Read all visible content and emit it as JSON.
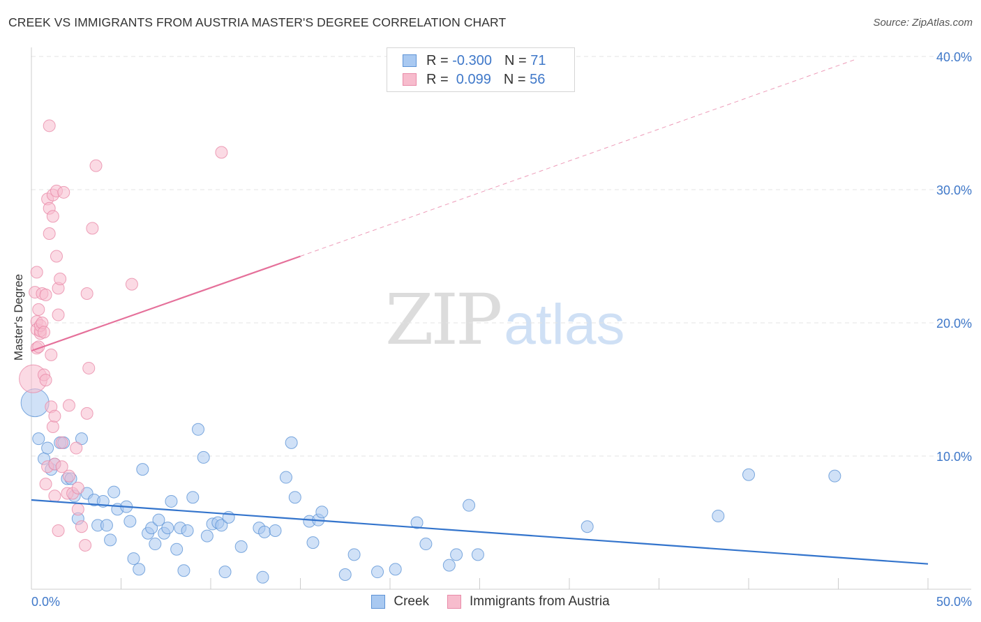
{
  "title": "CREEK VS IMMIGRANTS FROM AUSTRIA MASTER'S DEGREE CORRELATION CHART",
  "source": "Source: ZipAtlas.com",
  "watermark": {
    "zip": "ZIP",
    "atlas": "atlas"
  },
  "legend": {
    "creek": {
      "r_label": "R = ",
      "r_value": "-0.300",
      "n_label": "N = ",
      "n_value": "71"
    },
    "austria": {
      "r_label": "R = ",
      "r_value": " 0.099",
      "n_label": "N = ",
      "n_value": "56"
    }
  },
  "bottom_legend": {
    "creek": "Creek",
    "austria": "Immigrants from Austria"
  },
  "colors": {
    "creek_fill": "#a9c9f1",
    "creek_stroke": "#5d93d6",
    "creek_line": "#3374cc",
    "austria_fill": "#f7bccd",
    "austria_stroke": "#e98aa8",
    "austria_line": "#e5709a",
    "tick": "#3f78c9",
    "grid": "#e3e3e3"
  },
  "chart_data": {
    "type": "scatter",
    "title": "CREEK VS IMMIGRANTS FROM AUSTRIA MASTER'S DEGREE CORRELATION CHART",
    "xlabel": "",
    "ylabel": "Master's Degree",
    "xlim": [
      0,
      50
    ],
    "ylim": [
      0,
      40
    ],
    "x_ticks": [
      "0.0%",
      "50.0%"
    ],
    "y_ticks": [
      {
        "value": 10,
        "label": "10.0%"
      },
      {
        "value": 20,
        "label": "20.0%"
      },
      {
        "value": 30,
        "label": "30.0%"
      },
      {
        "value": 40,
        "label": "40.0%"
      }
    ],
    "series": [
      {
        "name": "Creek",
        "r": -0.3,
        "n": 71,
        "trend": {
          "x0": 0,
          "y0": 6.7,
          "x1": 50,
          "y1": 1.9,
          "dashed_from": null
        },
        "points": [
          {
            "x": 0.2,
            "y": 14.0,
            "big": true
          },
          {
            "x": 0.4,
            "y": 11.3
          },
          {
            "x": 0.7,
            "y": 9.8
          },
          {
            "x": 0.9,
            "y": 10.6
          },
          {
            "x": 1.1,
            "y": 9.0
          },
          {
            "x": 1.3,
            "y": 9.4
          },
          {
            "x": 1.6,
            "y": 11.0
          },
          {
            "x": 1.8,
            "y": 11.0
          },
          {
            "x": 2.0,
            "y": 8.3
          },
          {
            "x": 2.2,
            "y": 8.3
          },
          {
            "x": 2.4,
            "y": 7.0
          },
          {
            "x": 2.6,
            "y": 5.3
          },
          {
            "x": 2.8,
            "y": 11.3
          },
          {
            "x": 3.1,
            "y": 7.2
          },
          {
            "x": 3.5,
            "y": 6.7
          },
          {
            "x": 3.7,
            "y": 4.8
          },
          {
            "x": 4.0,
            "y": 6.6
          },
          {
            "x": 4.2,
            "y": 4.8
          },
          {
            "x": 4.4,
            "y": 3.7
          },
          {
            "x": 4.6,
            "y": 7.3
          },
          {
            "x": 4.8,
            "y": 6.0
          },
          {
            "x": 5.3,
            "y": 6.2
          },
          {
            "x": 5.5,
            "y": 5.1
          },
          {
            "x": 5.7,
            "y": 2.3
          },
          {
            "x": 6.0,
            "y": 1.5
          },
          {
            "x": 6.2,
            "y": 9.0
          },
          {
            "x": 6.5,
            "y": 4.2
          },
          {
            "x": 6.7,
            "y": 4.6
          },
          {
            "x": 6.9,
            "y": 3.4
          },
          {
            "x": 7.1,
            "y": 5.2
          },
          {
            "x": 7.4,
            "y": 4.2
          },
          {
            "x": 7.6,
            "y": 4.6
          },
          {
            "x": 7.8,
            "y": 6.6
          },
          {
            "x": 8.1,
            "y": 3.0
          },
          {
            "x": 8.3,
            "y": 4.6
          },
          {
            "x": 8.5,
            "y": 1.4
          },
          {
            "x": 8.7,
            "y": 4.4
          },
          {
            "x": 9.0,
            "y": 6.9
          },
          {
            "x": 9.3,
            "y": 12.0
          },
          {
            "x": 9.6,
            "y": 9.9
          },
          {
            "x": 9.8,
            "y": 4.0
          },
          {
            "x": 10.1,
            "y": 4.9
          },
          {
            "x": 10.4,
            "y": 5.0
          },
          {
            "x": 10.6,
            "y": 4.8
          },
          {
            "x": 10.8,
            "y": 1.3
          },
          {
            "x": 11.0,
            "y": 5.4
          },
          {
            "x": 11.7,
            "y": 3.2
          },
          {
            "x": 12.7,
            "y": 4.6
          },
          {
            "x": 12.9,
            "y": 0.9
          },
          {
            "x": 13.0,
            "y": 4.3
          },
          {
            "x": 13.6,
            "y": 4.4
          },
          {
            "x": 14.2,
            "y": 8.4
          },
          {
            "x": 14.5,
            "y": 11.0
          },
          {
            "x": 14.7,
            "y": 6.9
          },
          {
            "x": 15.5,
            "y": 5.1
          },
          {
            "x": 15.7,
            "y": 3.5
          },
          {
            "x": 16.0,
            "y": 5.2
          },
          {
            "x": 16.2,
            "y": 5.8
          },
          {
            "x": 17.5,
            "y": 1.1
          },
          {
            "x": 18.0,
            "y": 2.6
          },
          {
            "x": 19.3,
            "y": 1.3
          },
          {
            "x": 20.3,
            "y": 1.5
          },
          {
            "x": 21.5,
            "y": 5.0
          },
          {
            "x": 22.0,
            "y": 3.4
          },
          {
            "x": 23.3,
            "y": 1.8
          },
          {
            "x": 23.7,
            "y": 2.6
          },
          {
            "x": 24.9,
            "y": 2.6
          },
          {
            "x": 24.4,
            "y": 6.3
          },
          {
            "x": 31.0,
            "y": 4.7
          },
          {
            "x": 38.3,
            "y": 5.5
          },
          {
            "x": 40.0,
            "y": 8.6
          },
          {
            "x": 44.8,
            "y": 8.5
          }
        ]
      },
      {
        "name": "Immigrants from Austria",
        "r": 0.099,
        "n": 56,
        "trend": {
          "x0": 0,
          "y0": 17.9,
          "x1": 15.0,
          "y1": 25.0,
          "dashed_from": 15.0,
          "dashed_to_x": 46.0,
          "dashed_to_y": 39.8
        },
        "points": [
          {
            "x": 0.1,
            "y": 15.8,
            "big": true
          },
          {
            "x": 0.2,
            "y": 22.3
          },
          {
            "x": 0.3,
            "y": 20.1
          },
          {
            "x": 0.3,
            "y": 19.5
          },
          {
            "x": 0.3,
            "y": 18.1
          },
          {
            "x": 0.3,
            "y": 23.8
          },
          {
            "x": 0.4,
            "y": 21.0
          },
          {
            "x": 0.4,
            "y": 18.2
          },
          {
            "x": 0.5,
            "y": 19.2
          },
          {
            "x": 0.5,
            "y": 19.4
          },
          {
            "x": 0.5,
            "y": 19.8
          },
          {
            "x": 0.6,
            "y": 20.0
          },
          {
            "x": 0.6,
            "y": 22.2
          },
          {
            "x": 0.7,
            "y": 19.3
          },
          {
            "x": 0.7,
            "y": 16.1
          },
          {
            "x": 0.8,
            "y": 15.7
          },
          {
            "x": 0.8,
            "y": 22.1
          },
          {
            "x": 0.8,
            "y": 7.9
          },
          {
            "x": 0.9,
            "y": 9.2
          },
          {
            "x": 0.9,
            "y": 29.3
          },
          {
            "x": 1.0,
            "y": 26.7
          },
          {
            "x": 1.0,
            "y": 34.8
          },
          {
            "x": 1.0,
            "y": 28.6
          },
          {
            "x": 1.1,
            "y": 17.6
          },
          {
            "x": 1.1,
            "y": 13.7
          },
          {
            "x": 1.2,
            "y": 12.2
          },
          {
            "x": 1.2,
            "y": 28.0
          },
          {
            "x": 1.2,
            "y": 29.6
          },
          {
            "x": 1.3,
            "y": 13.0
          },
          {
            "x": 1.3,
            "y": 9.4
          },
          {
            "x": 1.3,
            "y": 7.0
          },
          {
            "x": 1.4,
            "y": 29.9
          },
          {
            "x": 1.4,
            "y": 25.0
          },
          {
            "x": 1.5,
            "y": 4.4
          },
          {
            "x": 1.5,
            "y": 20.6
          },
          {
            "x": 1.5,
            "y": 22.6
          },
          {
            "x": 1.6,
            "y": 23.3
          },
          {
            "x": 1.7,
            "y": 9.2
          },
          {
            "x": 1.7,
            "y": 11.0
          },
          {
            "x": 1.8,
            "y": 29.8
          },
          {
            "x": 2.0,
            "y": 7.2
          },
          {
            "x": 2.1,
            "y": 13.8
          },
          {
            "x": 2.1,
            "y": 8.5
          },
          {
            "x": 2.3,
            "y": 7.2
          },
          {
            "x": 2.5,
            "y": 10.6
          },
          {
            "x": 2.6,
            "y": 6.0
          },
          {
            "x": 2.6,
            "y": 7.6
          },
          {
            "x": 2.8,
            "y": 4.7
          },
          {
            "x": 3.0,
            "y": 3.3
          },
          {
            "x": 3.1,
            "y": 13.2
          },
          {
            "x": 3.2,
            "y": 16.6
          },
          {
            "x": 3.4,
            "y": 27.1
          },
          {
            "x": 3.6,
            "y": 31.8
          },
          {
            "x": 3.1,
            "y": 22.2
          },
          {
            "x": 5.6,
            "y": 22.9
          },
          {
            "x": 10.6,
            "y": 32.8
          }
        ]
      }
    ]
  }
}
